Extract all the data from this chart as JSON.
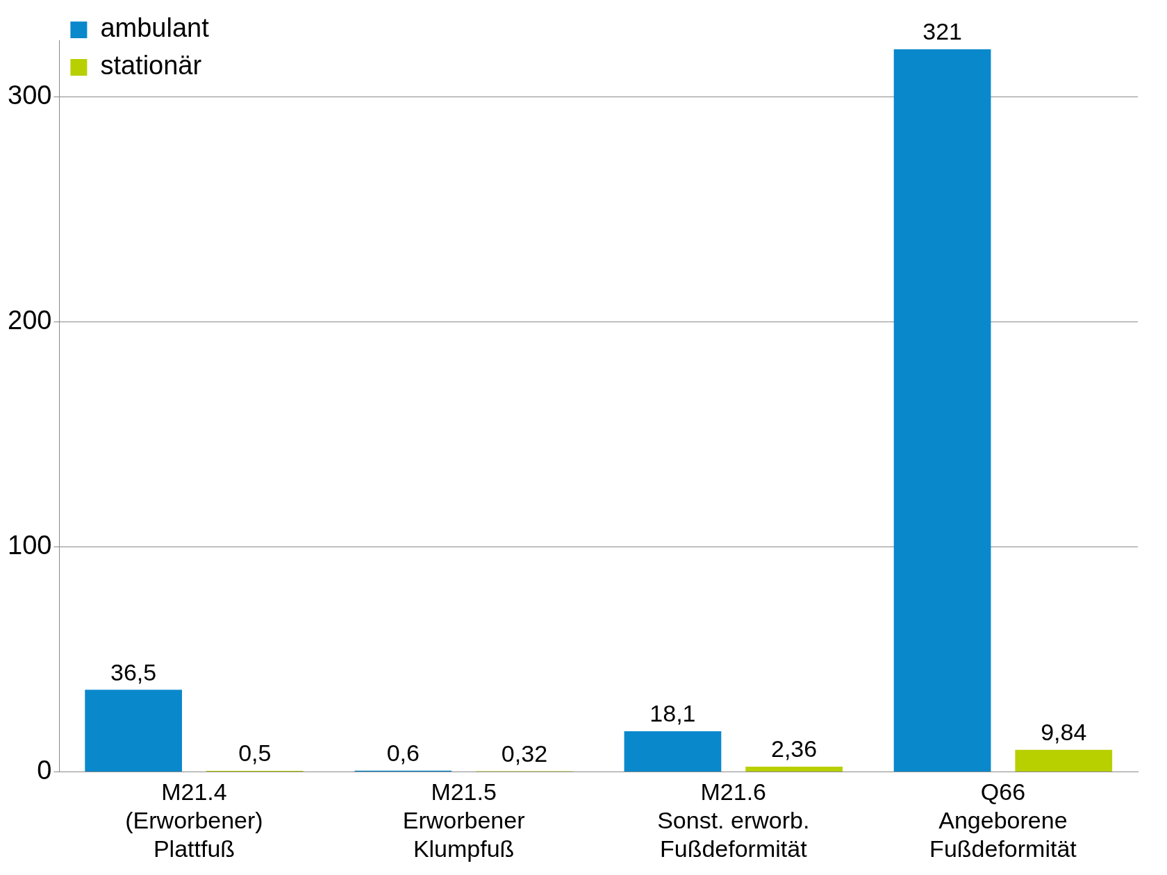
{
  "chart_data": {
    "type": "bar",
    "categories": [
      "M21.4\n(Erworbener)\nPlattfuß",
      "M21.5\nErworbener\nKlumpfuß",
      "M21.6\nSonst. erworb.\nFußdeformität",
      "Q66\nAngeborene\nFußdeformität"
    ],
    "series": [
      {
        "name": "ambulant",
        "color": "#0a88cc",
        "values": [
          36.5,
          0.6,
          18.1,
          321
        ],
        "value_labels": [
          "36,5",
          "0,6",
          "18,1",
          "321"
        ]
      },
      {
        "name": "stationär",
        "color": "#b8cf00",
        "values": [
          0.5,
          0.32,
          2.36,
          9.84
        ],
        "value_labels": [
          "0,5",
          "0,32",
          "2,36",
          "9,84"
        ]
      }
    ],
    "ylim": [
      0,
      325
    ],
    "yticks": [
      0,
      100,
      200,
      300
    ],
    "grid": "y",
    "legend": "top left"
  }
}
